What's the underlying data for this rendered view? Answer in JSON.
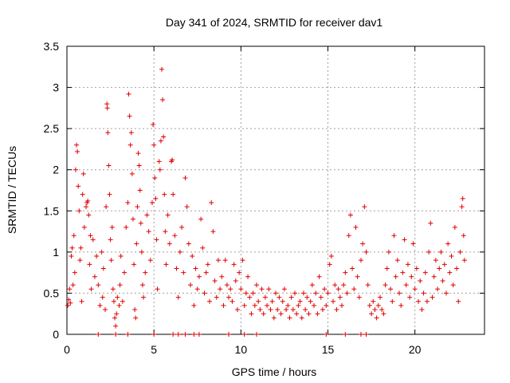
{
  "chart_data": {
    "type": "scatter",
    "title": "Day 341 of 2024, SRMTID for receiver dav1",
    "xlabel": "GPS time / hours",
    "ylabel": "SRMTID / TECUs",
    "xlim": [
      0,
      24
    ],
    "ylim": [
      0,
      3.5
    ],
    "x_ticks": [
      0,
      5,
      10,
      15,
      20
    ],
    "x_tick_labels": [
      "0",
      "5",
      "10",
      "15",
      "20"
    ],
    "y_ticks": [
      0,
      0.5,
      1,
      1.5,
      2,
      2.5,
      3,
      3.5
    ],
    "y_tick_labels": [
      "0",
      "0.5",
      "1",
      "1.5",
      "2",
      "2.5",
      "3",
      "3.5"
    ],
    "grid": true,
    "marker": "+",
    "color": "#e00000",
    "series": [
      {
        "name": "SRMTID",
        "points": [
          [
            0.05,
            0.35
          ],
          [
            0.1,
            0.42
          ],
          [
            0.15,
            0.55
          ],
          [
            0.2,
            0.38
          ],
          [
            0.25,
            0.95
          ],
          [
            0.3,
            1.05
          ],
          [
            0.35,
            0.6
          ],
          [
            0.4,
            1.2
          ],
          [
            0.45,
            0.75
          ],
          [
            0.5,
            2.0
          ],
          [
            0.55,
            2.3
          ],
          [
            0.6,
            2.22
          ],
          [
            0.65,
            1.8
          ],
          [
            0.7,
            1.5
          ],
          [
            0.75,
            0.9
          ],
          [
            0.8,
            1.05
          ],
          [
            0.85,
            0.4
          ],
          [
            0.9,
            1.7
          ],
          [
            0.95,
            1.95
          ],
          [
            1.0,
            1.3
          ],
          [
            1.1,
            1.55
          ],
          [
            1.15,
            1.6
          ],
          [
            1.2,
            1.62
          ],
          [
            1.25,
            1.45
          ],
          [
            1.3,
            0.85
          ],
          [
            1.35,
            1.2
          ],
          [
            1.4,
            0.55
          ],
          [
            1.5,
            1.15
          ],
          [
            1.6,
            0.7
          ],
          [
            1.7,
            0.95
          ],
          [
            1.8,
            0.6
          ],
          [
            1.9,
            0.35
          ],
          [
            2.0,
            1.0
          ],
          [
            2.05,
            0.45
          ],
          [
            2.1,
            0.8
          ],
          [
            2.2,
            0.3
          ],
          [
            2.25,
            1.55
          ],
          [
            2.3,
            2.8
          ],
          [
            2.32,
            2.75
          ],
          [
            2.35,
            2.45
          ],
          [
            2.4,
            2.05
          ],
          [
            2.45,
            1.7
          ],
          [
            2.5,
            1.15
          ],
          [
            2.55,
            0.9
          ],
          [
            2.6,
            1.3
          ],
          [
            2.65,
            0.55
          ],
          [
            2.7,
            0.4
          ],
          [
            2.75,
            0.2
          ],
          [
            2.8,
            0.1
          ],
          [
            2.85,
            0.25
          ],
          [
            2.9,
            0.45
          ],
          [
            3.0,
            0.35
          ],
          [
            3.05,
            0.6
          ],
          [
            3.1,
            0.95
          ],
          [
            3.2,
            0.4
          ],
          [
            3.3,
            0.75
          ],
          [
            3.4,
            1.3
          ],
          [
            3.5,
            1.6
          ],
          [
            3.55,
            2.92
          ],
          [
            3.6,
            2.65
          ],
          [
            3.65,
            2.3
          ],
          [
            3.7,
            2.45
          ],
          [
            3.75,
            1.95
          ],
          [
            3.8,
            1.4
          ],
          [
            3.85,
            0.85
          ],
          [
            3.9,
            0.3
          ],
          [
            3.95,
            0.2
          ],
          [
            4.0,
            1.1
          ],
          [
            4.05,
            1.55
          ],
          [
            4.1,
            2.2
          ],
          [
            4.15,
            2.05
          ],
          [
            4.2,
            1.75
          ],
          [
            4.25,
            1.35
          ],
          [
            4.3,
            1.0
          ],
          [
            4.35,
            0.6
          ],
          [
            4.4,
            0.45
          ],
          [
            4.5,
            0.75
          ],
          [
            4.6,
            1.45
          ],
          [
            4.7,
            1.25
          ],
          [
            4.8,
            0.9
          ],
          [
            4.9,
            1.6
          ],
          [
            4.95,
            2.55
          ],
          [
            5.0,
            2.3
          ],
          [
            5.05,
            1.9
          ],
          [
            5.1,
            1.65
          ],
          [
            5.15,
            1.15
          ],
          [
            5.2,
            0.55
          ],
          [
            5.3,
            2.1
          ],
          [
            5.35,
            2.0
          ],
          [
            5.4,
            2.35
          ],
          [
            5.45,
            3.22
          ],
          [
            5.5,
            2.85
          ],
          [
            5.55,
            2.4
          ],
          [
            5.6,
            1.7
          ],
          [
            5.65,
            1.25
          ],
          [
            5.7,
            0.85
          ],
          [
            5.8,
            1.45
          ],
          [
            5.9,
            1.1
          ],
          [
            6.0,
            2.1
          ],
          [
            6.05,
            2.12
          ],
          [
            6.1,
            1.7
          ],
          [
            6.2,
            1.2
          ],
          [
            6.3,
            0.8
          ],
          [
            6.4,
            0.45
          ],
          [
            6.5,
            1.0
          ],
          [
            6.6,
            1.3
          ],
          [
            6.7,
            0.75
          ],
          [
            6.8,
            1.9
          ],
          [
            6.9,
            1.55
          ],
          [
            7.0,
            1.1
          ],
          [
            7.1,
            0.6
          ],
          [
            7.2,
            0.95
          ],
          [
            7.3,
            0.35
          ],
          [
            7.4,
            0.8
          ],
          [
            7.5,
            0.55
          ],
          [
            7.6,
            0.7
          ],
          [
            7.7,
            1.4
          ],
          [
            7.8,
            1.05
          ],
          [
            7.9,
            0.5
          ],
          [
            8.0,
            0.75
          ],
          [
            8.1,
            0.85
          ],
          [
            8.2,
            0.4
          ],
          [
            8.3,
            1.6
          ],
          [
            8.4,
            1.25
          ],
          [
            8.5,
            0.65
          ],
          [
            8.6,
            0.45
          ],
          [
            8.7,
            0.9
          ],
          [
            8.8,
            0.55
          ],
          [
            8.9,
            0.7
          ],
          [
            9.0,
            0.35
          ],
          [
            9.1,
            0.9
          ],
          [
            9.2,
            0.6
          ],
          [
            9.3,
            0.45
          ],
          [
            9.4,
            0.55
          ],
          [
            9.5,
            0.4
          ],
          [
            9.6,
            0.85
          ],
          [
            9.7,
            0.65
          ],
          [
            9.8,
            0.3
          ],
          [
            9.9,
            0.75
          ],
          [
            10.0,
            0.55
          ],
          [
            10.1,
            0.9
          ],
          [
            10.2,
            0.35
          ],
          [
            10.3,
            0.5
          ],
          [
            10.4,
            0.7
          ],
          [
            10.5,
            0.45
          ],
          [
            10.6,
            0.25
          ],
          [
            10.7,
            0.5
          ],
          [
            10.8,
            0.35
          ],
          [
            10.9,
            0.6
          ],
          [
            11.0,
            0.4
          ],
          [
            11.1,
            0.3
          ],
          [
            11.2,
            0.55
          ],
          [
            11.3,
            0.25
          ],
          [
            11.4,
            0.45
          ],
          [
            11.5,
            0.35
          ],
          [
            11.6,
            0.55
          ],
          [
            11.7,
            0.3
          ],
          [
            11.8,
            0.4
          ],
          [
            11.9,
            0.2
          ],
          [
            12.0,
            0.5
          ],
          [
            12.1,
            0.3
          ],
          [
            12.2,
            0.45
          ],
          [
            12.3,
            0.25
          ],
          [
            12.4,
            0.4
          ],
          [
            12.5,
            0.55
          ],
          [
            12.6,
            0.3
          ],
          [
            12.7,
            0.35
          ],
          [
            12.8,
            0.2
          ],
          [
            12.9,
            0.45
          ],
          [
            13.0,
            0.3
          ],
          [
            13.1,
            0.5
          ],
          [
            13.2,
            0.25
          ],
          [
            13.3,
            0.35
          ],
          [
            13.4,
            0.4
          ],
          [
            13.5,
            0.2
          ],
          [
            13.6,
            0.5
          ],
          [
            13.7,
            0.3
          ],
          [
            13.8,
            0.45
          ],
          [
            13.9,
            0.25
          ],
          [
            14.0,
            0.4
          ],
          [
            14.1,
            0.6
          ],
          [
            14.2,
            0.35
          ],
          [
            14.3,
            0.5
          ],
          [
            14.4,
            0.25
          ],
          [
            14.5,
            0.7
          ],
          [
            14.6,
            0.45
          ],
          [
            14.7,
            0.3
          ],
          [
            14.8,
            0.55
          ],
          [
            14.9,
            0.35
          ],
          [
            15.0,
            0.5
          ],
          [
            15.1,
            0.85
          ],
          [
            15.2,
            0.95
          ],
          [
            15.3,
            0.4
          ],
          [
            15.4,
            0.6
          ],
          [
            15.5,
            0.3
          ],
          [
            15.6,
            0.55
          ],
          [
            15.7,
            0.45
          ],
          [
            15.8,
            0.35
          ],
          [
            15.9,
            0.6
          ],
          [
            16.0,
            0.75
          ],
          [
            16.1,
            0.5
          ],
          [
            16.2,
            1.2
          ],
          [
            16.3,
            1.45
          ],
          [
            16.4,
            0.8
          ],
          [
            16.5,
            0.55
          ],
          [
            16.6,
            1.3
          ],
          [
            16.7,
            0.7
          ],
          [
            16.8,
            0.45
          ],
          [
            16.9,
            0.9
          ],
          [
            17.0,
            1.1
          ],
          [
            17.1,
            1.55
          ],
          [
            17.2,
            1.0
          ],
          [
            17.3,
            0.6
          ],
          [
            17.4,
            0.35
          ],
          [
            17.5,
            0.25
          ],
          [
            17.6,
            0.4
          ],
          [
            17.7,
            0.3
          ],
          [
            17.8,
            0.2
          ],
          [
            17.9,
            0.35
          ],
          [
            18.0,
            0.45
          ],
          [
            18.1,
            0.3
          ],
          [
            18.2,
            0.25
          ],
          [
            18.3,
            0.6
          ],
          [
            18.4,
            0.8
          ],
          [
            18.5,
            1.0
          ],
          [
            18.6,
            0.55
          ],
          [
            18.7,
            0.4
          ],
          [
            18.8,
            1.2
          ],
          [
            18.9,
            0.7
          ],
          [
            19.0,
            0.9
          ],
          [
            19.1,
            0.5
          ],
          [
            19.2,
            0.35
          ],
          [
            19.3,
            0.75
          ],
          [
            19.4,
            1.15
          ],
          [
            19.5,
            0.6
          ],
          [
            19.6,
            0.85
          ],
          [
            19.7,
            0.45
          ],
          [
            19.8,
            0.7
          ],
          [
            19.9,
            1.1
          ],
          [
            20.0,
            0.55
          ],
          [
            20.1,
            0.8
          ],
          [
            20.2,
            0.4
          ],
          [
            20.3,
            0.65
          ],
          [
            20.4,
            0.3
          ],
          [
            20.5,
            0.5
          ],
          [
            20.6,
            0.75
          ],
          [
            20.7,
            0.4
          ],
          [
            20.8,
            1.0
          ],
          [
            20.9,
            1.35
          ],
          [
            21.0,
            0.45
          ],
          [
            21.1,
            0.7
          ],
          [
            21.2,
            0.9
          ],
          [
            21.3,
            0.55
          ],
          [
            21.4,
            0.8
          ],
          [
            21.5,
            1.0
          ],
          [
            21.6,
            0.65
          ],
          [
            21.7,
            0.85
          ],
          [
            21.8,
            0.5
          ],
          [
            21.9,
            1.1
          ],
          [
            22.0,
            0.75
          ],
          [
            22.1,
            0.95
          ],
          [
            22.2,
            0.6
          ],
          [
            22.3,
            1.3
          ],
          [
            22.4,
            0.8
          ],
          [
            22.5,
            0.4
          ],
          [
            22.6,
            1.0
          ],
          [
            22.7,
            1.55
          ],
          [
            22.75,
            1.65
          ],
          [
            22.8,
            1.2
          ],
          [
            22.85,
            0.9
          ],
          [
            1.8,
            0
          ],
          [
            2.8,
            0
          ],
          [
            3.5,
            0
          ],
          [
            5.0,
            0
          ],
          [
            6.1,
            0
          ],
          [
            6.4,
            0
          ],
          [
            6.8,
            0
          ],
          [
            7.3,
            0
          ],
          [
            7.6,
            0
          ],
          [
            9.3,
            0
          ],
          [
            10.2,
            0
          ],
          [
            10.9,
            0
          ],
          [
            14.9,
            0
          ],
          [
            16.0,
            0
          ],
          [
            16.9,
            0
          ],
          [
            17.2,
            0
          ]
        ]
      }
    ]
  }
}
